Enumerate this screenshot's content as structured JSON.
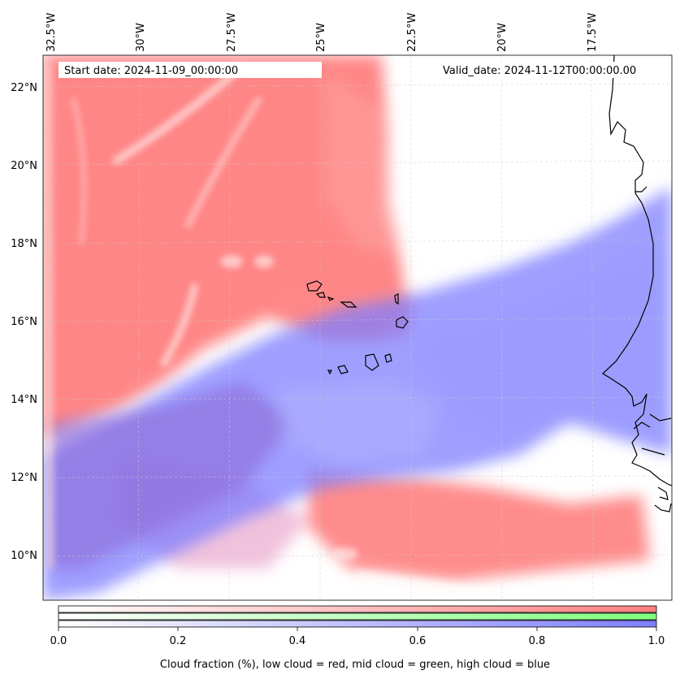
{
  "map": {
    "start_label": "Start date: 2024-11-09_00:00:00",
    "valid_label": "Valid_date: 2024-11-12T00:00:00.00",
    "lon_ticks": [
      "32.5°W",
      "30°W",
      "27.5°W",
      "25°W",
      "22.5°W",
      "20°W",
      "17.5°W"
    ],
    "lat_ticks": [
      "22°N",
      "20°N",
      "18°N",
      "16°N",
      "14°N",
      "12°N",
      "10°N"
    ],
    "colors": {
      "low_cloud": "#ff7f7f",
      "mid_cloud": "#7fff7f",
      "high_cloud": "#7f7fff"
    }
  },
  "colorbar": {
    "ticks": [
      "0.0",
      "0.2",
      "0.4",
      "0.6",
      "0.8",
      "1.0"
    ],
    "label": "Cloud fraction (%), low cloud = red, mid cloud = green, high cloud = blue"
  }
}
